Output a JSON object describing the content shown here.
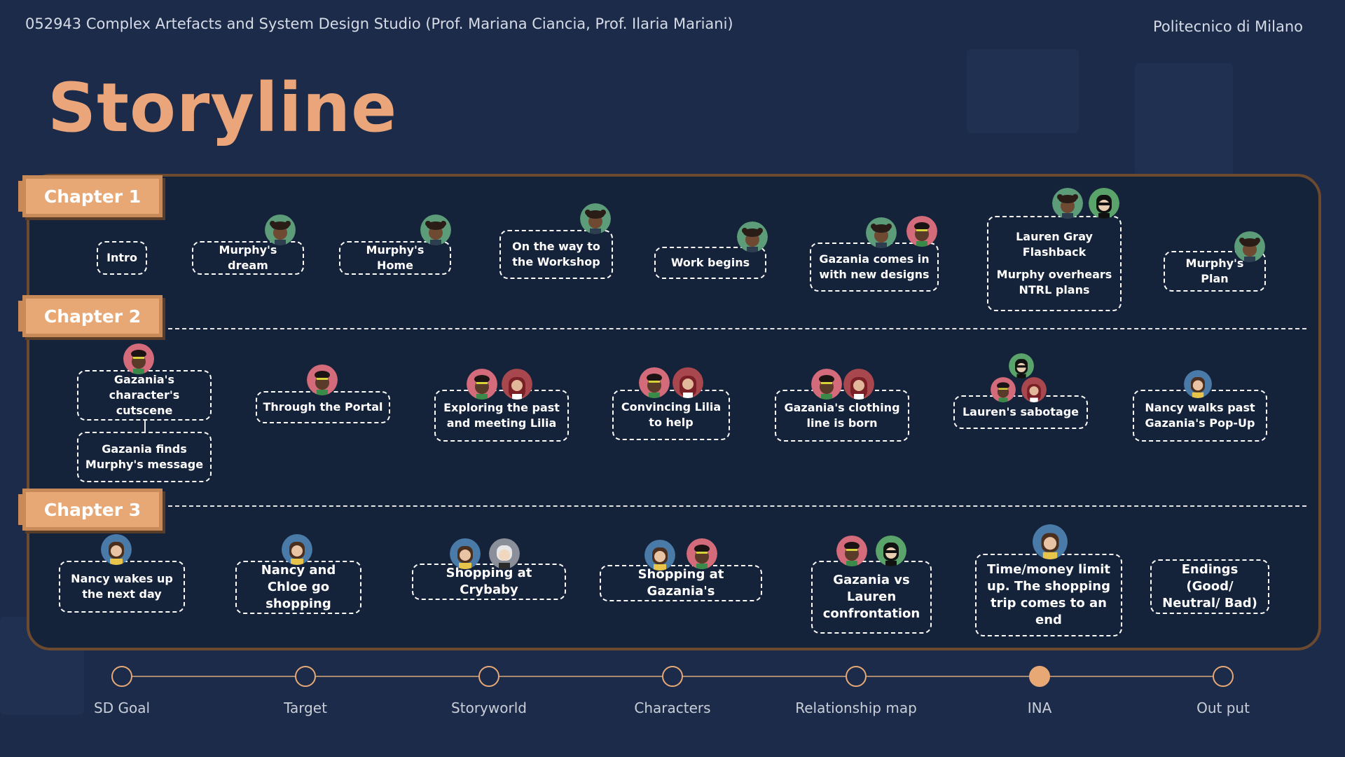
{
  "header": {
    "course": "052943 Complex Artefacts and System Design Studio (Prof. Mariana Ciancia, Prof. Ilaria Mariani)",
    "university": "Politecnico di Milano",
    "title": "Storyline"
  },
  "chapters": [
    "Chapter 1",
    "Chapter 2",
    "Chapter 3"
  ],
  "chapter1": [
    "Intro",
    "Murphy's dream",
    "Murphy's Home",
    "On the way to the Workshop",
    "Work begins",
    "Gazania comes in with new designs",
    "Lauren Gray Flashback",
    "Murphy overhears NTRL plans",
    "Murphy's Plan"
  ],
  "chapter2": [
    "Gazania's character's cutscene",
    "Gazania finds Murphy's message",
    "Through the Portal",
    "Exploring the past and meeting Lilia",
    "Convincing Lilia to help",
    "Gazania's clothing line is born",
    "Lauren's sabotage",
    "Nancy walks past Gazania's Pop-Up"
  ],
  "chapter3": [
    "Nancy wakes up the next day",
    "Nancy and Chloe go shopping",
    "Shopping at Crybaby",
    "Shopping at Gazania's",
    "Gazania vs Lauren confrontation",
    "Time/money limit up. The shopping trip comes to an end",
    "Endings (Good/ Neutral/ Bad)"
  ],
  "avatar_icons": {
    "murphy": "murphy-avatar-icon",
    "gazania": "gazania-avatar-icon",
    "lilia": "lilia-avatar-icon",
    "lauren": "lauren-avatar-icon",
    "nancy": "nancy-avatar-icon",
    "chloe": "chloe-avatar-icon"
  },
  "colors": {
    "accent": "#e7a876",
    "background": "#1b2b49",
    "panel_border": "#6b4a30"
  },
  "timeline": {
    "items": [
      "SD Goal",
      "Target",
      "Storyworld",
      "Characters",
      "Relationship map",
      "INA",
      "Out put"
    ],
    "active": "INA"
  }
}
